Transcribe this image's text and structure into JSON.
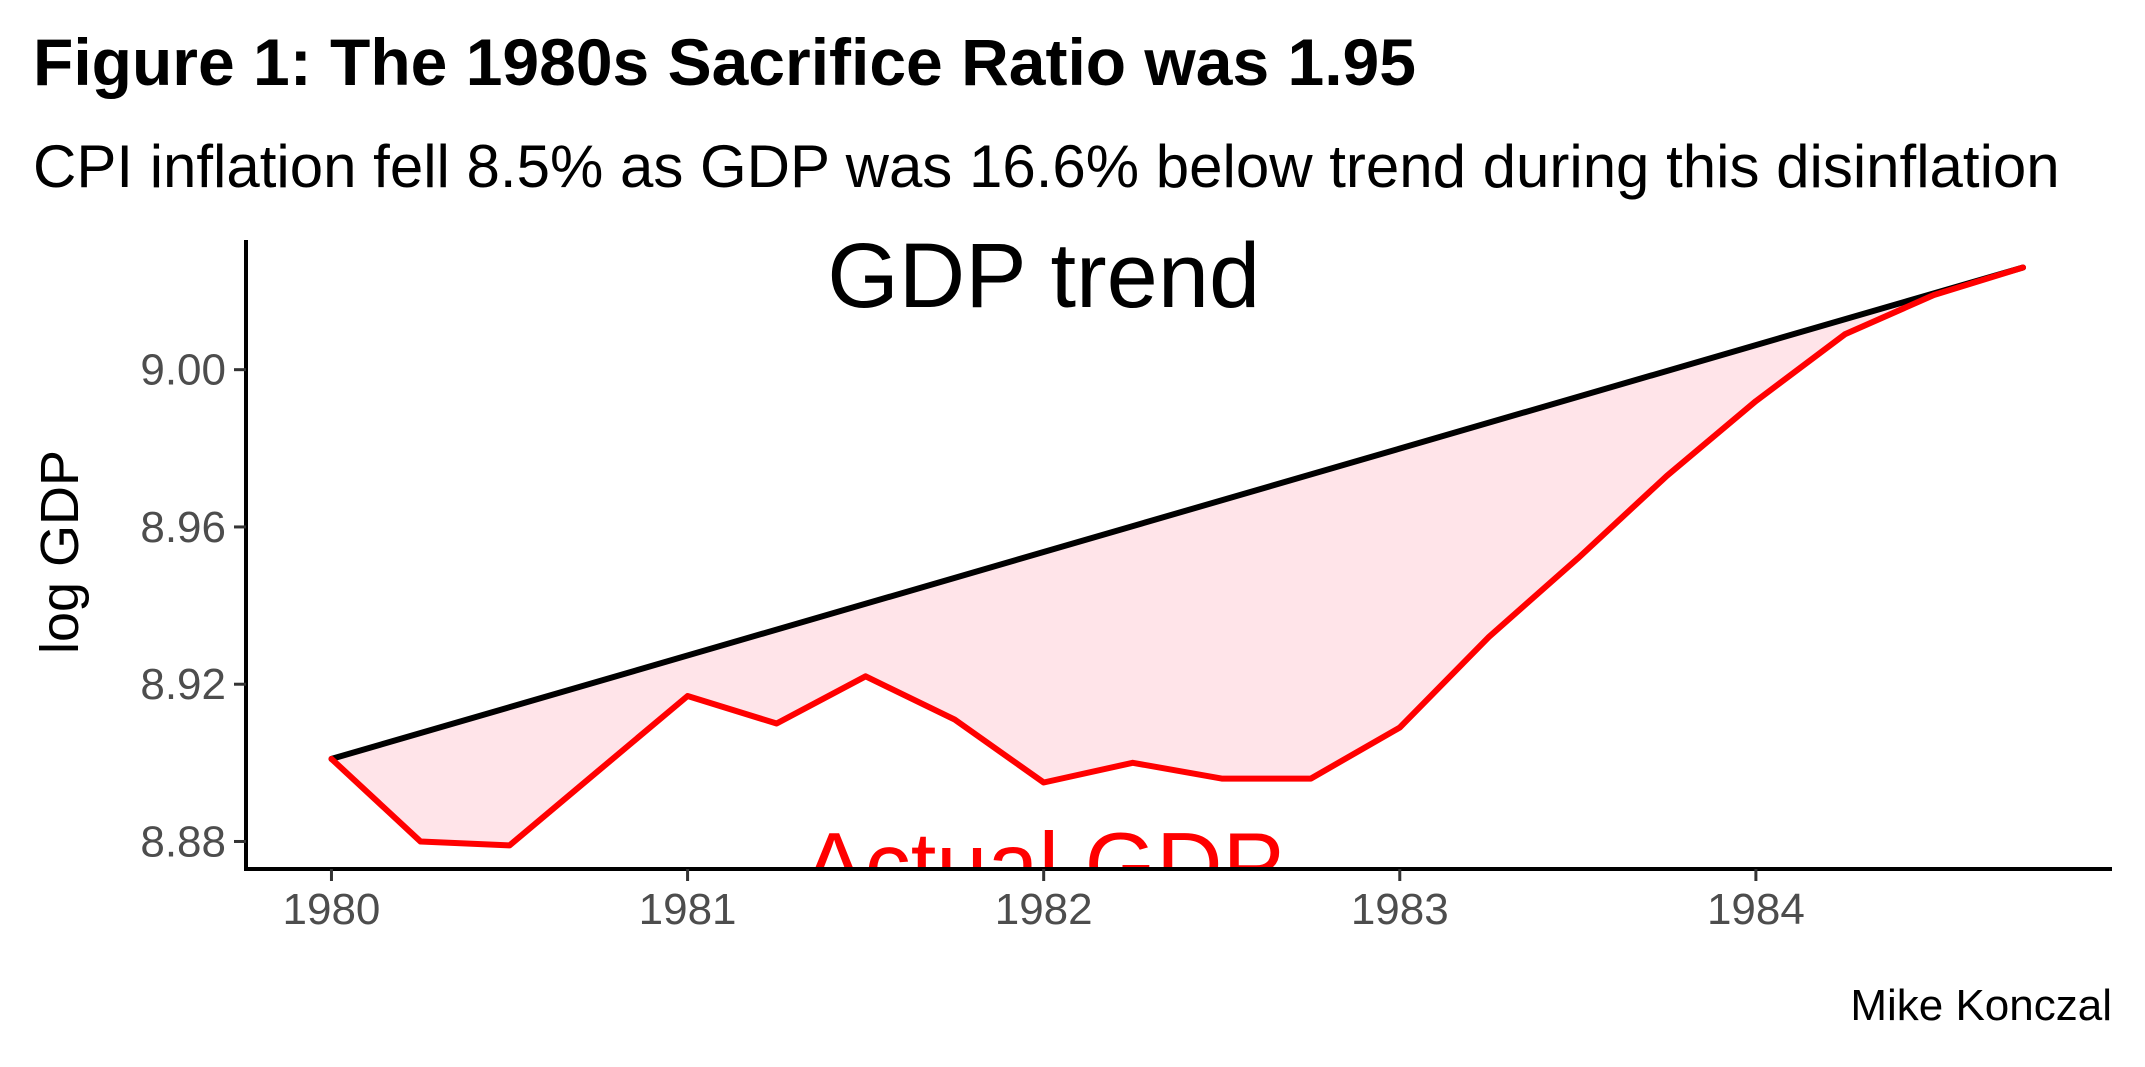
{
  "chart_data": {
    "type": "line",
    "title": "Figure 1: The 1980s Sacrifice Ratio was 1.95",
    "subtitle": "CPI inflation fell 8.5% as GDP was 16.6% below trend during this disinflation",
    "xlabel": "",
    "ylabel": "log GDP",
    "caption": "Mike Konczal",
    "xlim": [
      1979.76,
      1985.0
    ],
    "ylim": [
      8.873,
      9.034
    ],
    "x_ticks": [
      1980,
      1981,
      1982,
      1983,
      1984
    ],
    "x_tick_labels": [
      "1980",
      "1981",
      "1982",
      "1983",
      "1984"
    ],
    "y_ticks": [
      8.88,
      8.92,
      8.96,
      9.0
    ],
    "y_tick_labels": [
      "8.88",
      "8.92",
      "8.96",
      "9.00"
    ],
    "grid": false,
    "legend": "none",
    "series": [
      {
        "name": "GDP trend",
        "color": "#000000",
        "x": [
          1980.0,
          1984.75
        ],
        "y": [
          8.901,
          9.026
        ]
      },
      {
        "name": "Actual GDP",
        "color": "#ff0000",
        "x": [
          1980.0,
          1980.25,
          1980.5,
          1980.75,
          1981.0,
          1981.25,
          1981.5,
          1981.75,
          1982.0,
          1982.25,
          1982.5,
          1982.75,
          1983.0,
          1983.25,
          1983.5,
          1983.75,
          1984.0,
          1984.25,
          1984.5,
          1984.75
        ],
        "y": [
          8.901,
          8.88,
          8.879,
          8.898,
          8.917,
          8.91,
          8.922,
          8.911,
          8.895,
          8.9,
          8.896,
          8.896,
          8.909,
          8.932,
          8.952,
          8.973,
          8.992,
          9.009,
          9.019,
          9.026
        ]
      }
    ],
    "fill_between": {
      "color": "#ffe4e9"
    },
    "annotations": [
      {
        "text": "GDP trend",
        "x": 1982.0,
        "y": 9.016,
        "color": "#000000"
      },
      {
        "text": "Actual GDP",
        "x": 1982.0,
        "y": 8.866,
        "color": "#ff0000"
      }
    ]
  }
}
